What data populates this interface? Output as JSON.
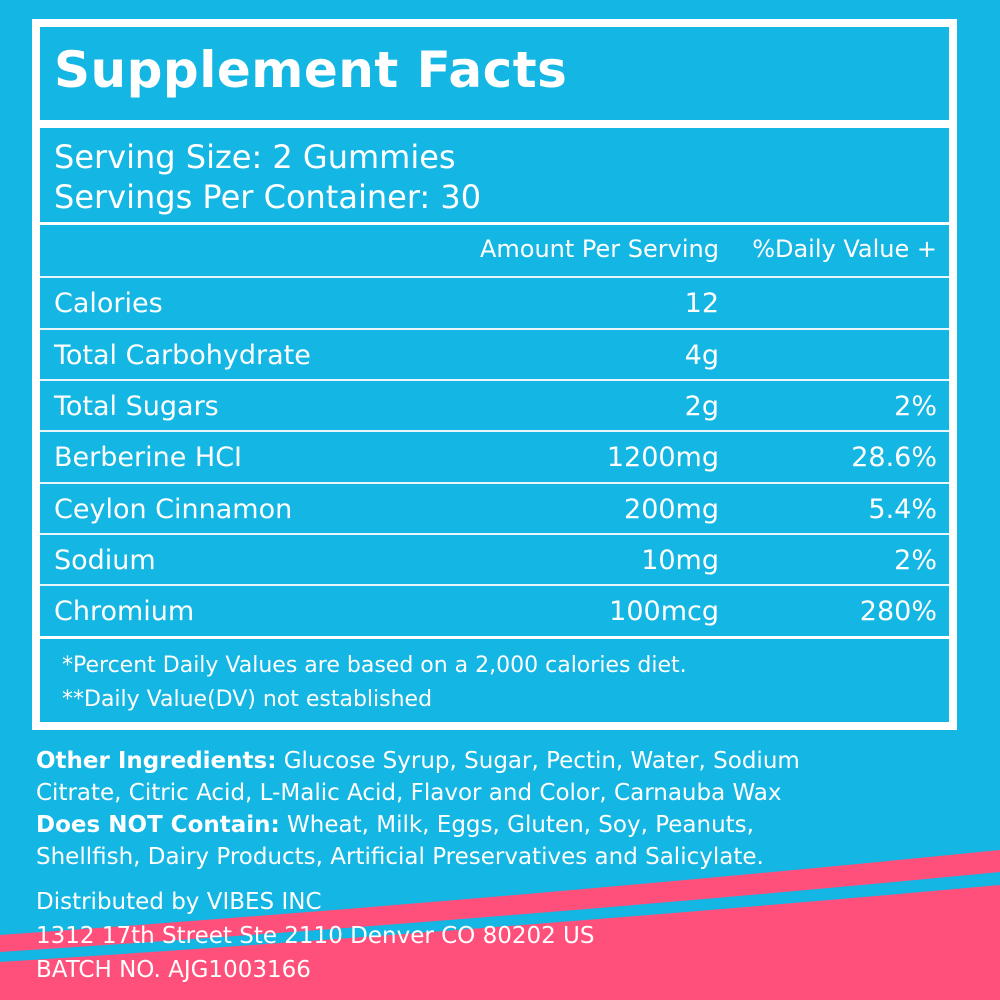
{
  "colors": {
    "background": "#14b6e3",
    "accent_pink": "#ff4f7b",
    "text": "#ffffff"
  },
  "title": "Supplement Facts",
  "serving_size": "Serving Size: 2 Gummies",
  "servings_per_container": "Servings Per Container: 30",
  "columns": {
    "amount": "Amount Per Serving",
    "dv": "%Daily Value +"
  },
  "rows": [
    {
      "name": "Calories",
      "amount": "12",
      "dv": ""
    },
    {
      "name": "Total Carbohydrate",
      "amount": "4g",
      "dv": ""
    },
    {
      "name": "Total Sugars",
      "amount": "2g",
      "dv": "2%"
    },
    {
      "name": "Berberine HCI",
      "amount": "1200mg",
      "dv": "28.6%"
    },
    {
      "name": "Ceylon Cinnamon",
      "amount": "200mg",
      "dv": "5.4%"
    },
    {
      "name": "Sodium",
      "amount": "10mg",
      "dv": "2%"
    },
    {
      "name": "Chromium",
      "amount": "100mcg",
      "dv": "280%"
    }
  ],
  "footnotes": [
    "*Percent Daily Values are based on a 2,000 calories diet.",
    "**Daily Value(DV) not established"
  ],
  "other_ingredients": {
    "label": "Other Ingredients:",
    "line1": " Glucose Syrup, Sugar, Pectin, Water, Sodium",
    "line2": "Citrate, Citric Acid, L-Malic Acid, Flavor and Color, Carnauba Wax"
  },
  "does_not_contain": {
    "label": "Does NOT Contain:",
    "line1": " Wheat, Milk, Eggs, Gluten, Soy, Peanuts,",
    "line2": "Shellfish, Dairy Products, Artificial Preservatives and Salicylate."
  },
  "distributor": [
    "Distributed by VIBES INC",
    "1312 17th Street Ste 2110 Denver CO 80202 US",
    "BATCH NO. AJG1003166"
  ]
}
